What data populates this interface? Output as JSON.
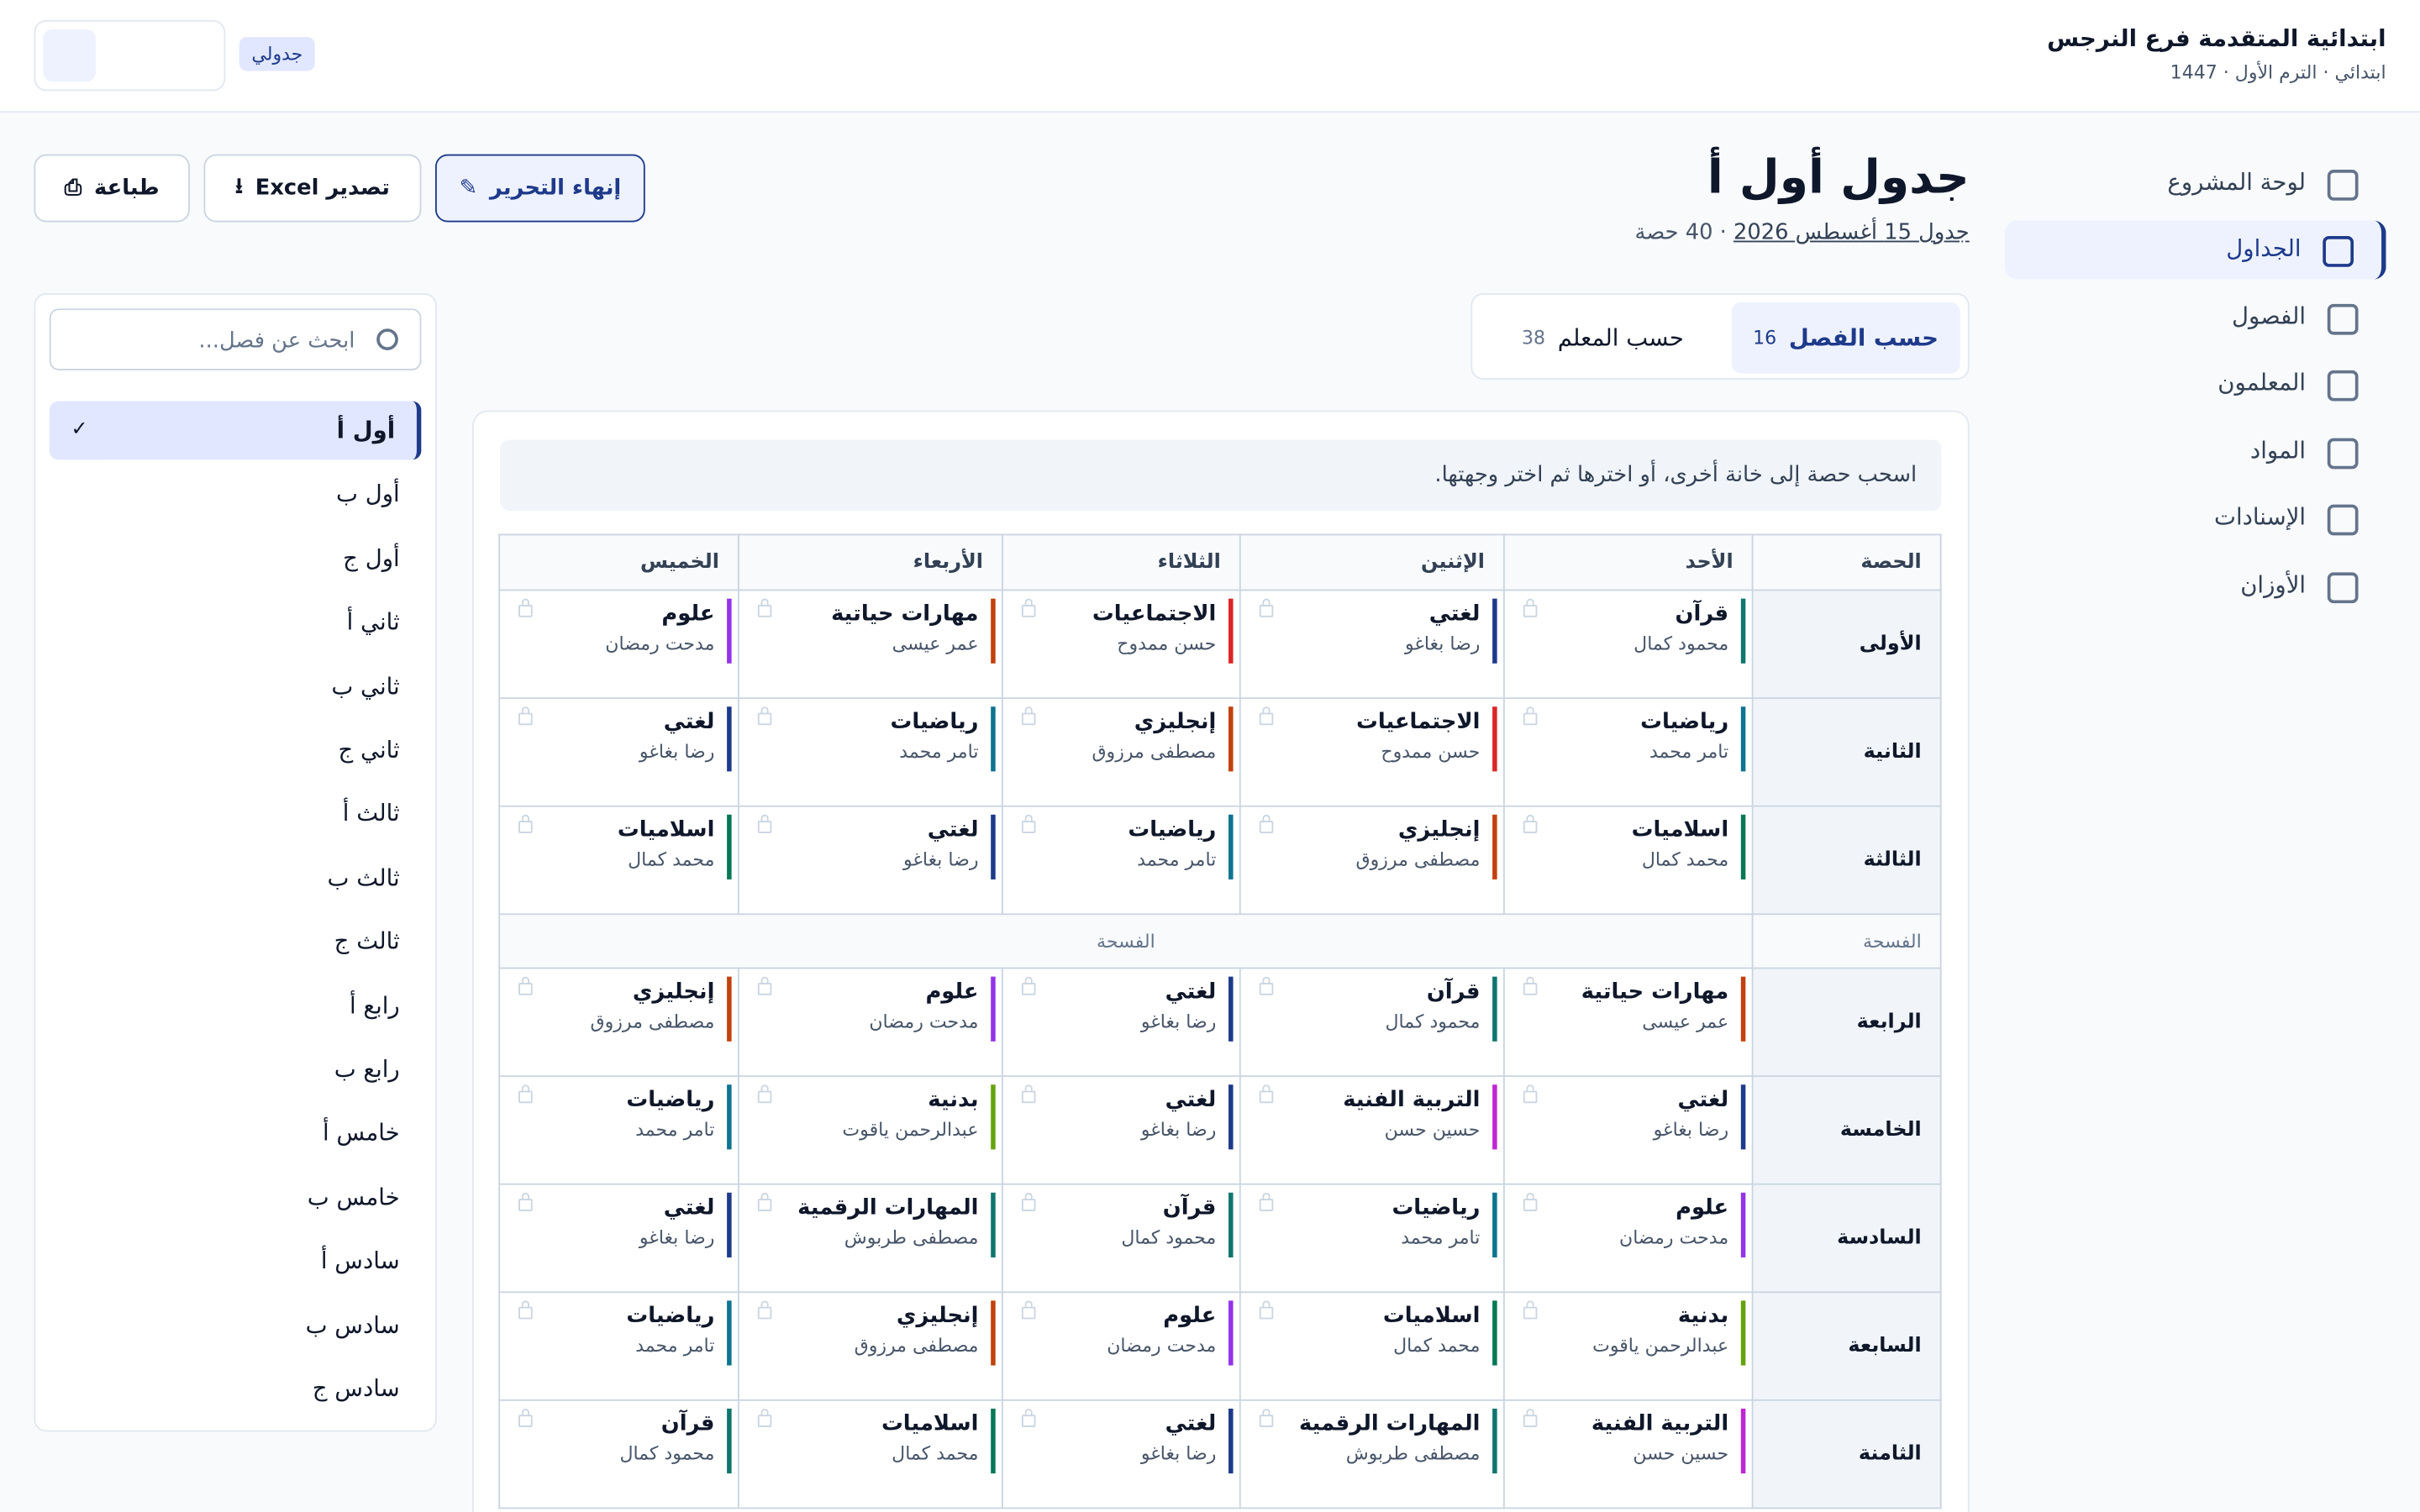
{
  "header": {
    "school": "ابتدائية المتقدمة فرع النرجس",
    "subtitle": "ابتدائي · الترم الأول · 1447",
    "badge": "جدولي"
  },
  "nav": {
    "active": 1,
    "items": [
      "لوحة المشروع",
      "الجداول",
      "الفصول",
      "المعلمون",
      "المواد",
      "الإسنادات",
      "الأوزان"
    ]
  },
  "page": {
    "title": "جدول أول أ",
    "schedule_link": "جدول 15 أغسطس 2026",
    "count": "· 40 حصة",
    "buttons": {
      "finish": "إنهاء التحرير",
      "export": "تصدير Excel",
      "print": "طباعة"
    }
  },
  "tabs": [
    {
      "label": "حسب الفصل",
      "count": 16,
      "active": true
    },
    {
      "label": "حسب المعلم",
      "count": 38,
      "active": false
    }
  ],
  "hint": "اسحب حصة إلى خانة أخرى، أو اخترها ثم اختر وجهتها.",
  "table": {
    "columns": [
      "الحصة",
      "الأحد",
      "الإثنين",
      "الثلاثاء",
      "الأربعاء",
      "الخميس"
    ],
    "rows": [
      {
        "period": "الأولى",
        "cells": [
          {
            "subject": "قرآن",
            "teacher": "محمود كمال",
            "color": "#0f766e"
          },
          {
            "subject": "لغتي",
            "teacher": "رضا بغاغو",
            "color": "#1e3a8a"
          },
          {
            "subject": "الاجتماعيات",
            "teacher": "حسن ممدوح",
            "color": "#dc2626"
          },
          {
            "subject": "مهارات حياتية",
            "teacher": "عمر عيسى",
            "color": "#c2410c"
          },
          {
            "subject": "علوم",
            "teacher": "مدحت رمضان",
            "color": "#9333ea"
          }
        ]
      },
      {
        "period": "الثانية",
        "cells": [
          {
            "subject": "رياضيات",
            "teacher": "تامر محمد",
            "color": "#0e7490"
          },
          {
            "subject": "الاجتماعيات",
            "teacher": "حسن ممدوح",
            "color": "#dc2626"
          },
          {
            "subject": "إنجليزي",
            "teacher": "مصطفى مرزوق",
            "color": "#c2410c"
          },
          {
            "subject": "رياضيات",
            "teacher": "تامر محمد",
            "color": "#0e7490"
          },
          {
            "subject": "لغتي",
            "teacher": "رضا بغاغو",
            "color": "#1e3a8a"
          }
        ]
      },
      {
        "period": "الثالثة",
        "cells": [
          {
            "subject": "اسلاميات",
            "teacher": "محمد كمال",
            "color": "#047857"
          },
          {
            "subject": "إنجليزي",
            "teacher": "مصطفى مرزوق",
            "color": "#c2410c"
          },
          {
            "subject": "رياضيات",
            "teacher": "تامر محمد",
            "color": "#0e7490"
          },
          {
            "subject": "لغتي",
            "teacher": "رضا بغاغو",
            "color": "#1e3a8a"
          },
          {
            "subject": "اسلاميات",
            "teacher": "محمد كمال",
            "color": "#047857"
          }
        ]
      },
      {
        "break": "الفسحة",
        "break_span": "الفسحة"
      },
      {
        "period": "الرابعة",
        "cells": [
          {
            "subject": "مهارات حياتية",
            "teacher": "عمر عيسى",
            "color": "#c2410c"
          },
          {
            "subject": "قرآن",
            "teacher": "محمود كمال",
            "color": "#0f766e"
          },
          {
            "subject": "لغتي",
            "teacher": "رضا بغاغو",
            "color": "#1e3a8a"
          },
          {
            "subject": "علوم",
            "teacher": "مدحت رمضان",
            "color": "#9333ea"
          },
          {
            "subject": "إنجليزي",
            "teacher": "مصطفى مرزوق",
            "color": "#c2410c"
          }
        ]
      },
      {
        "period": "الخامسة",
        "cells": [
          {
            "subject": "لغتي",
            "teacher": "رضا بغاغو",
            "color": "#1e3a8a"
          },
          {
            "subject": "التربية الفنية",
            "teacher": "حسين حسن",
            "color": "#c026d3"
          },
          {
            "subject": "لغتي",
            "teacher": "رضا بغاغو",
            "color": "#1e3a8a"
          },
          {
            "subject": "بدنية",
            "teacher": "عبدالرحمن ياقوت",
            "color": "#65a30d"
          },
          {
            "subject": "رياضيات",
            "teacher": "تامر محمد",
            "color": "#0e7490"
          }
        ]
      },
      {
        "period": "السادسة",
        "cells": [
          {
            "subject": "علوم",
            "teacher": "مدحت رمضان",
            "color": "#9333ea"
          },
          {
            "subject": "رياضيات",
            "teacher": "تامر محمد",
            "color": "#0e7490"
          },
          {
            "subject": "قرآن",
            "teacher": "محمود كمال",
            "color": "#0f766e"
          },
          {
            "subject": "المهارات الرقمية",
            "teacher": "مصطفى طربوش",
            "color": "#0f766e"
          },
          {
            "subject": "لغتي",
            "teacher": "رضا بغاغو",
            "color": "#1e3a8a"
          }
        ]
      },
      {
        "period": "السابعة",
        "cells": [
          {
            "subject": "بدنية",
            "teacher": "عبدالرحمن ياقوت",
            "color": "#65a30d"
          },
          {
            "subject": "اسلاميات",
            "teacher": "محمد كمال",
            "color": "#047857"
          },
          {
            "subject": "علوم",
            "teacher": "مدحت رمضان",
            "color": "#9333ea"
          },
          {
            "subject": "إنجليزي",
            "teacher": "مصطفى مرزوق",
            "color": "#c2410c"
          },
          {
            "subject": "رياضيات",
            "teacher": "تامر محمد",
            "color": "#0e7490"
          }
        ]
      },
      {
        "period": "الثامنة",
        "cells": [
          {
            "subject": "التربية الفنية",
            "teacher": "حسين حسن",
            "color": "#c026d3"
          },
          {
            "subject": "المهارات الرقمية",
            "teacher": "مصطفى طربوش",
            "color": "#0f766e"
          },
          {
            "subject": "لغتي",
            "teacher": "رضا بغاغو",
            "color": "#1e3a8a"
          },
          {
            "subject": "اسلاميات",
            "teacher": "محمد كمال",
            "color": "#047857"
          },
          {
            "subject": "قرآن",
            "teacher": "محمود كمال",
            "color": "#0f766e"
          }
        ]
      }
    ]
  },
  "class_panel": {
    "search_placeholder": "ابحث عن فصل...",
    "selected_index": 0,
    "classes": [
      "أول أ",
      "أول ب",
      "أول ج",
      "ثاني أ",
      "ثاني ب",
      "ثاني ج",
      "ثالث أ",
      "ثالث ب",
      "ثالث ج",
      "رابع أ",
      "رابع ب",
      "خامس أ",
      "خامس ب",
      "سادس أ",
      "سادس ب",
      "سادس ج"
    ]
  }
}
